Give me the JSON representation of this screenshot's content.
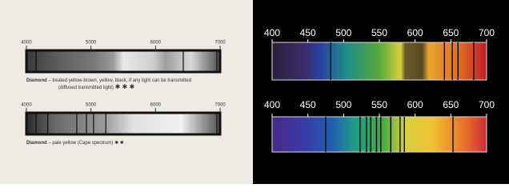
{
  "left": {
    "spectra": [
      {
        "xlim": [
          4000,
          7000
        ],
        "ticks": [
          4000,
          5000,
          6000,
          7000
        ],
        "lines": [
          4150,
          6430,
          6950
        ],
        "name": "Diamond",
        "description": "– treated yellow-brown, yellow, black, if any light can be transmitted",
        "note": "(diffused transmitted light)",
        "rating": "✱ ✱ ✱"
      },
      {
        "xlim": [
          4000,
          7000
        ],
        "ticks": [
          4000,
          5000,
          6000,
          7000
        ],
        "lines": [
          4150,
          4330,
          4780,
          4930,
          5040,
          5230,
          6950
        ],
        "name": "Diamond",
        "description": "– pale yellow (Cape spectrum)",
        "rating": "✱ ✱"
      }
    ]
  },
  "right": {
    "spectra": [
      {
        "xlim": [
          400,
          700
        ],
        "ticks": [
          400,
          450,
          500,
          550,
          600,
          650,
          700
        ],
        "lines": [
          482,
          641,
          652,
          660,
          682
        ]
      },
      {
        "xlim": [
          400,
          700
        ],
        "ticks": [
          400,
          450,
          500,
          550,
          600,
          650,
          700
        ],
        "lines": [
          475,
          523,
          532,
          538,
          546,
          552,
          566,
          579,
          585,
          653
        ]
      }
    ]
  }
}
